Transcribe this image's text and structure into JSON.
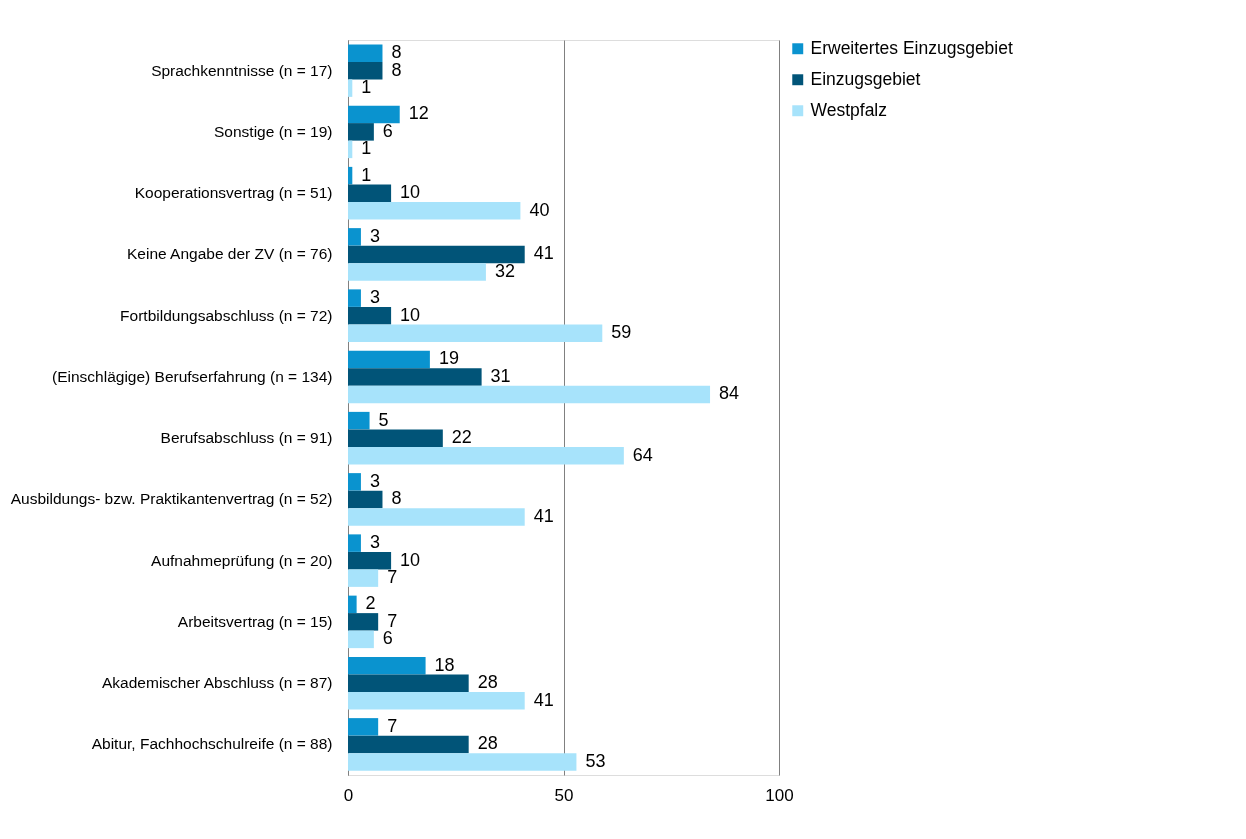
{
  "chart_data": {
    "type": "bar",
    "orientation": "horizontal",
    "categories": [
      "Sprachkenntnisse (n = 17)",
      "Sonstige (n = 19)",
      "Kooperationsvertrag (n = 51)",
      "Keine Angabe der ZV (n = 76)",
      "Fortbildungsabschluss (n = 72)",
      "(Einschlägige) Berufserfahrung (n = 134)",
      "Berufsabschluss (n = 91)",
      "Ausbildungs- bzw. Praktikantenvertrag (n = 52)",
      "Aufnahmeprüfung (n = 20)",
      "Arbeitsvertrag (n = 15)",
      "Akademischer Abschluss (n = 87)",
      "Abitur, Fachhochschulreife (n = 88)"
    ],
    "series": [
      {
        "name": "Erweitertes Einzugsgebiet",
        "color": "#0a93cf",
        "values": [
          8,
          12,
          1,
          3,
          3,
          19,
          5,
          3,
          3,
          2,
          18,
          7
        ]
      },
      {
        "name": "Einzugsgebiet",
        "color": "#015478",
        "values": [
          8,
          6,
          10,
          41,
          10,
          31,
          22,
          8,
          10,
          7,
          28,
          28
        ]
      },
      {
        "name": "Westpfalz",
        "color": "#a7e3fb",
        "values": [
          1,
          1,
          40,
          32,
          59,
          84,
          64,
          41,
          7,
          6,
          41,
          53
        ]
      }
    ],
    "xlim": [
      0,
      100
    ],
    "xticks": [
      0,
      50,
      100
    ],
    "grid": "x",
    "legend": "right",
    "data_labels": true
  }
}
